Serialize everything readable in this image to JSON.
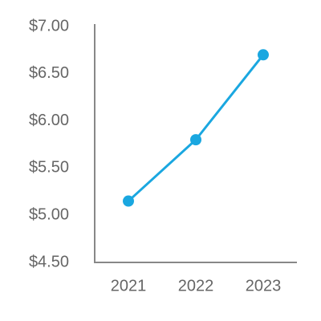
{
  "chart_data": {
    "type": "line",
    "categories": [
      "2021",
      "2022",
      "2023"
    ],
    "series": [
      {
        "color": "#1aa7e0",
        "values": [
          5.15,
          5.8,
          6.7
        ]
      }
    ],
    "ylim": [
      4.5,
      7.0
    ],
    "yticks": [
      {
        "value": 4.5,
        "label": "$4.50"
      },
      {
        "value": 5.0,
        "label": "$5.00"
      },
      {
        "value": 5.5,
        "label": "$5.50"
      },
      {
        "value": 6.0,
        "label": "$6.00"
      },
      {
        "value": 6.5,
        "label": "$6.50"
      },
      {
        "value": 7.0,
        "label": "$7.00"
      }
    ],
    "grid": false
  }
}
